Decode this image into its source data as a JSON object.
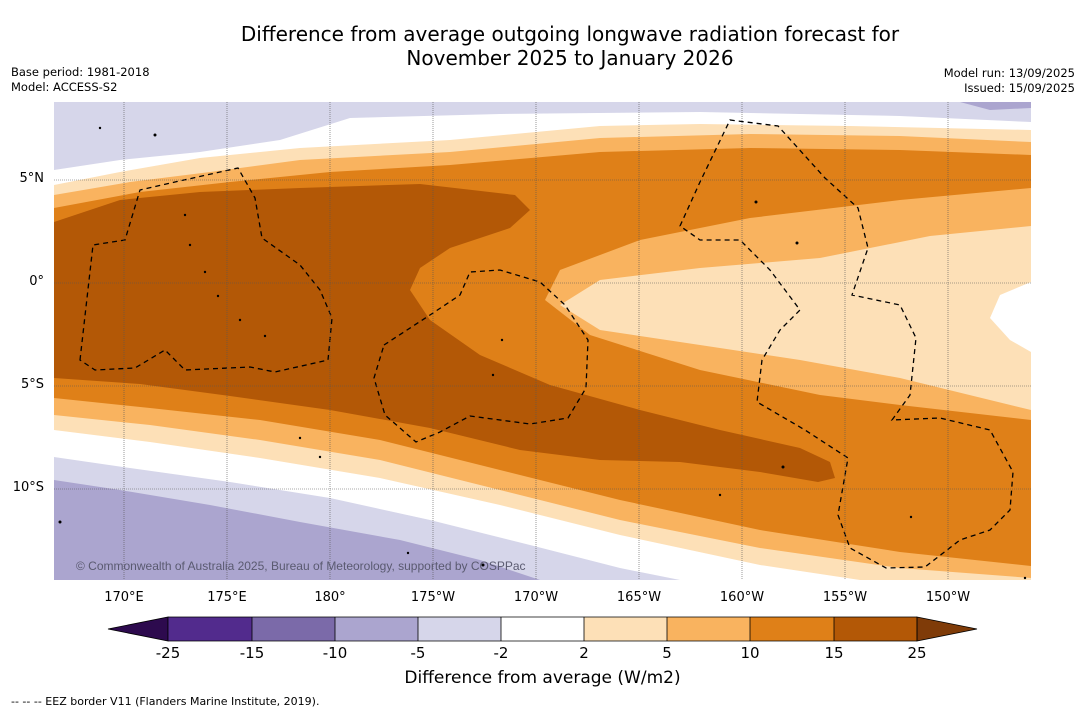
{
  "title": {
    "line1": "Difference from average outgoing longwave radiation forecast for",
    "line2": "November 2025 to January 2026"
  },
  "meta": {
    "base_period": "Base period: 1981-2018",
    "model": "Model: ACCESS-S2",
    "model_run": "Model run: 13/09/2025",
    "issued": "Issued: 15/09/2025"
  },
  "map": {
    "lat_labels": [
      "5°N",
      "0°",
      "5°S",
      "10°S"
    ],
    "lon_labels": [
      "170°E",
      "175°E",
      "180°",
      "175°W",
      "170°W",
      "165°W",
      "160°W",
      "155°W",
      "150°W"
    ],
    "copyright": "© Commonwealth of Australia 2025, Bureau of Meteorology, supported by COSPPac",
    "grid": true,
    "eez_style": "dashed"
  },
  "colorbar": {
    "ticks": [
      "-25",
      "-15",
      "-10",
      "-5",
      "-2",
      "2",
      "5",
      "10",
      "15",
      "25"
    ],
    "colors": [
      "#522b8d",
      "#7b6aa9",
      "#aba5cf",
      "#d6d6ea",
      "#ffffff",
      "#fde0b7",
      "#f9b35f",
      "#df8018",
      "#b35806"
    ],
    "extend_low_color": "#2d0a4e",
    "extend_high_color": "#7f3b08",
    "label": "Difference from average (W/m2)"
  },
  "footnote": "--  --  -- EEZ border V11 (Flanders Marine Institute, 2019)."
}
